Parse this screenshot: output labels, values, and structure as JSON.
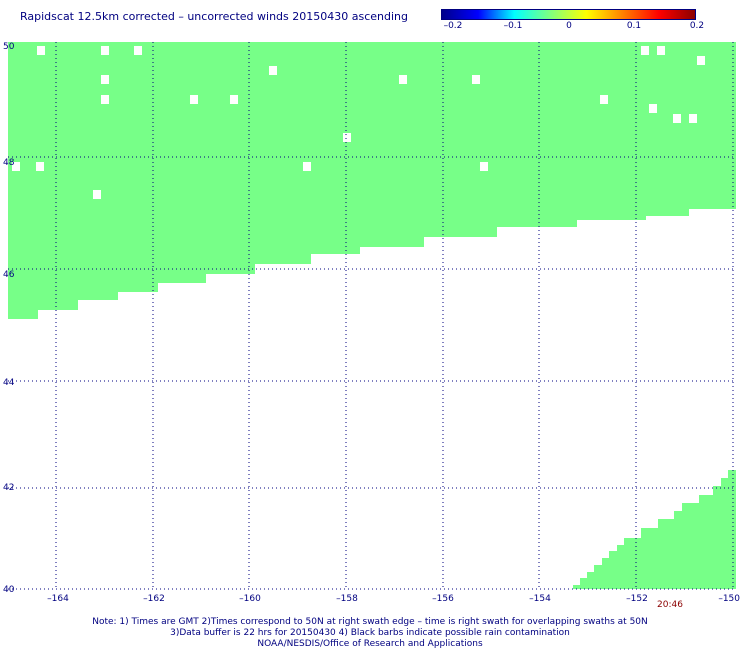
{
  "title": "Rapidscat 12.5km corrected – uncorrected winds 20150430 ascending",
  "colorbar": {
    "labels": [
      "–0.2",
      "–0.1",
      "0",
      "0.1",
      "0.2"
    ],
    "colors": [
      "#00008b",
      "#0000ff",
      "#00ffff",
      "#7fff7f",
      "#ffff00",
      "#ff8000",
      "#ff0000",
      "#8b0000"
    ]
  },
  "map": {
    "lat_labels": [
      "50",
      "48",
      "46",
      "44",
      "42",
      "40"
    ],
    "lon_labels": [
      "–164",
      "–162",
      "–160",
      "–158",
      "–156",
      "–154",
      "–152",
      "–150"
    ],
    "swath_color": "#77ff88",
    "grid_color": "#000080",
    "time_label": "20:46"
  },
  "notes": [
    "Note: 1) Times are GMT 2)Times correspond to 50N at right swath edge – time is right swath for overlapping swaths at 50N",
    "3)Data buffer is 22 hrs for 20150430 4) Black barbs indicate possible rain contamination",
    "NOAA/NESDIS/Office of Research and Applications"
  ]
}
